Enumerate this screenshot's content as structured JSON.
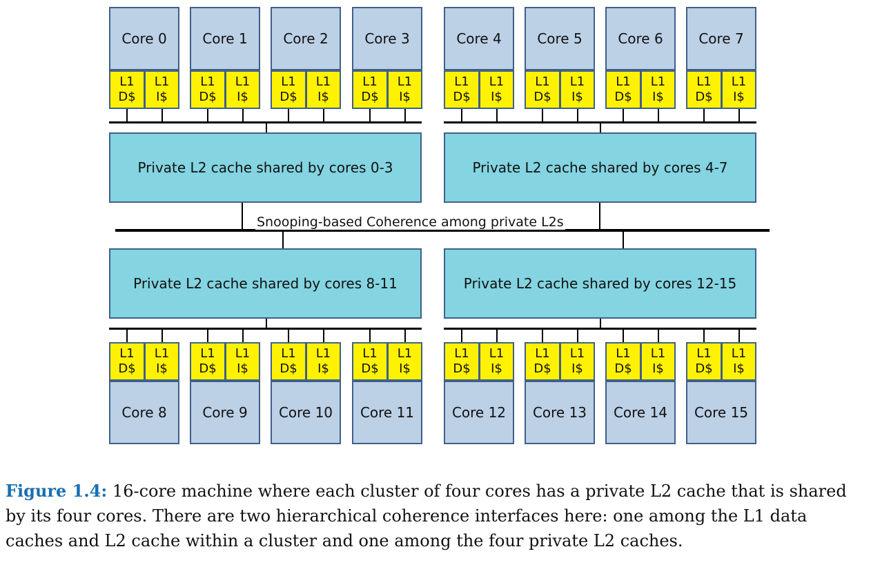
{
  "top_cores": [
    "Core 0",
    "Core 1",
    "Core 2",
    "Core 3",
    "Core 4",
    "Core 5",
    "Core 6",
    "Core 7"
  ],
  "bottom_cores": [
    "Core 8",
    "Core 9",
    "Core 10",
    "Core 11",
    "Core 12",
    "Core 13",
    "Core 14",
    "Core 15"
  ],
  "l1_data_label": "L1\nD$",
  "l1_instr_label": "L1\nI$",
  "l2_caches": [
    "Private L2 cache shared by cores 0-3",
    "Private L2 cache shared by cores 4-7",
    "Private L2 cache shared by cores 8-11",
    "Private L2 cache shared by cores 12-15"
  ],
  "coherence_bus_label": "Snooping-based Coherence among private L2s",
  "caption": {
    "label": "Figure 1.4:",
    "text": "16-core machine where each cluster of four cores has a private L2 cache that is shared by its four cores. There are two hierarchical coherence interfaces here: one among the L1 data caches and L2 cache within a cluster and one among the four private L2 caches."
  }
}
